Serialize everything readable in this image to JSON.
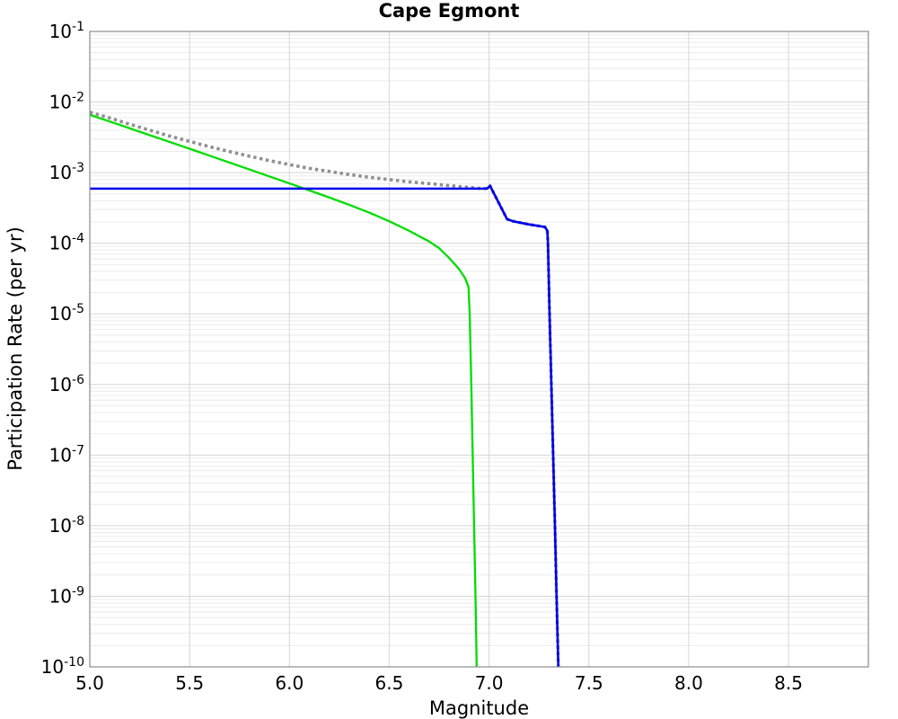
{
  "chart_data": {
    "type": "line",
    "title": "Cape Egmont",
    "xlabel": "Magnitude",
    "ylabel": "Participation Rate (per yr)",
    "x_axis": {
      "min": 5.0,
      "max": 8.9,
      "tick_values": [
        5.0,
        5.5,
        6.0,
        6.5,
        7.0,
        7.5,
        8.0,
        8.5
      ],
      "tick_labels": [
        "5.0",
        "5.5",
        "6.0",
        "6.5",
        "7.0",
        "7.5",
        "8.0",
        "8.5"
      ]
    },
    "y_axis": {
      "scale": "log",
      "min": 1e-10,
      "max": 0.1,
      "tick_exponents": [
        -1,
        -2,
        -3,
        -4,
        -5,
        -6,
        -7,
        -8,
        -9,
        -10
      ],
      "tick_base": "10"
    },
    "grid": {
      "major": true,
      "minor_horizontal": true,
      "major_color": "#d6d6d6",
      "minor_color": "#ebebeb"
    },
    "frame_color": "#8c8c8c",
    "background": "#ffffff",
    "legend": null,
    "series": [
      {
        "name": "total-rate-gray-dotted",
        "color": "#8f8f8f",
        "style": "dotted",
        "width": 3.6,
        "points": [
          [
            5.0,
            0.0072
          ],
          [
            5.1,
            0.00595
          ],
          [
            5.2,
            0.00485
          ],
          [
            5.3,
            0.004
          ],
          [
            5.4,
            0.0033
          ],
          [
            5.5,
            0.00277
          ],
          [
            5.6,
            0.00233
          ],
          [
            5.7,
            0.00199
          ],
          [
            5.8,
            0.00171
          ],
          [
            5.9,
            0.00148
          ],
          [
            6.0,
            0.0013
          ],
          [
            6.1,
            0.00115
          ],
          [
            6.2,
            0.00104
          ],
          [
            6.3,
            0.00094
          ],
          [
            6.4,
            0.00086
          ],
          [
            6.5,
            0.0008
          ],
          [
            6.6,
            0.00074
          ],
          [
            6.7,
            0.0007
          ],
          [
            6.8,
            0.000656
          ],
          [
            6.9,
            0.000618
          ],
          [
            6.95,
            0.0006
          ],
          [
            6.99,
            0.000595
          ],
          [
            7.005,
            0.00065
          ],
          [
            7.09,
            0.00022
          ],
          [
            7.12,
            0.000205
          ],
          [
            7.2,
            0.000185
          ],
          [
            7.28,
            0.00017
          ],
          [
            7.292,
            0.00015
          ],
          [
            7.295,
            0.0001
          ],
          [
            7.303,
            1e-05
          ],
          [
            7.312,
            1e-06
          ],
          [
            7.321,
            1e-07
          ],
          [
            7.33,
            1e-08
          ],
          [
            7.338,
            1e-09
          ],
          [
            7.347,
            1e-10
          ]
        ]
      },
      {
        "name": "exponential-rate-green",
        "color": "#00dd00",
        "style": "solid",
        "width": 2.3,
        "points": [
          [
            5.0,
            0.0066
          ],
          [
            5.1,
            0.0053
          ],
          [
            5.2,
            0.00425
          ],
          [
            5.3,
            0.0034
          ],
          [
            5.4,
            0.00272
          ],
          [
            5.5,
            0.00218
          ],
          [
            5.6,
            0.00174
          ],
          [
            5.7,
            0.00139
          ],
          [
            5.8,
            0.00111
          ],
          [
            5.9,
            0.000885
          ],
          [
            6.0,
            0.000705
          ],
          [
            6.1,
            0.00056
          ],
          [
            6.2,
            0.000445
          ],
          [
            6.3,
            0.00035
          ],
          [
            6.4,
            0.000272
          ],
          [
            6.5,
            0.000205
          ],
          [
            6.6,
            0.00015
          ],
          [
            6.7,
            0.000106
          ],
          [
            6.75,
            8.5e-05
          ],
          [
            6.8,
            6.2e-05
          ],
          [
            6.85,
            4.3e-05
          ],
          [
            6.88,
            3.2e-05
          ],
          [
            6.897,
            2.4e-05
          ],
          [
            6.903,
            1e-05
          ],
          [
            6.911,
            1e-06
          ],
          [
            6.918,
            1e-07
          ],
          [
            6.925,
            1e-08
          ],
          [
            6.932,
            1e-09
          ],
          [
            6.938,
            1e-10
          ]
        ]
      },
      {
        "name": "characteristic-rate-blue",
        "color": "#0000ee",
        "style": "solid",
        "width": 2.6,
        "points": [
          [
            5.0,
            0.000594
          ],
          [
            6.99,
            0.000594
          ],
          [
            7.005,
            0.00065
          ],
          [
            7.09,
            0.00022
          ],
          [
            7.12,
            0.000205
          ],
          [
            7.2,
            0.000185
          ],
          [
            7.28,
            0.00017
          ],
          [
            7.292,
            0.00015
          ],
          [
            7.295,
            0.0001
          ],
          [
            7.303,
            1e-05
          ],
          [
            7.312,
            1e-06
          ],
          [
            7.321,
            1e-07
          ],
          [
            7.33,
            1e-08
          ],
          [
            7.338,
            1e-09
          ],
          [
            7.347,
            1e-10
          ]
        ]
      }
    ]
  }
}
